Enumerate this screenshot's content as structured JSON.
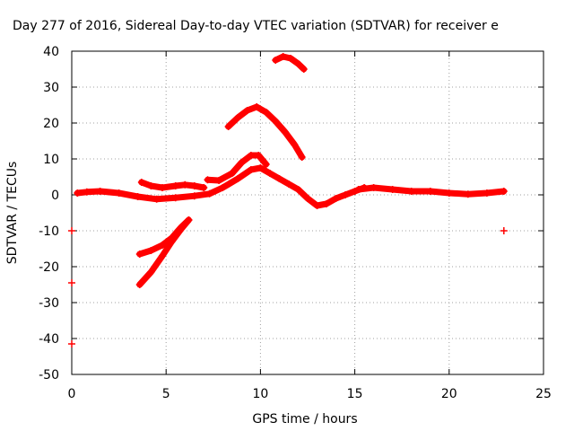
{
  "chart_data": {
    "type": "scatter",
    "title": "Day 277 of 2016, Sidereal Day-to-day VTEC variation (SDTVAR) for receiver e",
    "xlabel": "GPS time / hours",
    "ylabel": "SDTVAR / TECUs",
    "xlim": [
      0,
      25
    ],
    "ylim": [
      -50,
      40
    ],
    "xticks": [
      "0",
      "5",
      "10",
      "15",
      "20",
      "25"
    ],
    "yticks": [
      "40",
      "30",
      "20",
      "10",
      "0",
      "-10",
      "-20",
      "-30",
      "-40",
      "-50"
    ],
    "grid": true,
    "series": [
      {
        "color": "#ff0000",
        "marker": "plus",
        "tracks": [
          [
            [
              0.3,
              0.5
            ],
            [
              0.8,
              0.8
            ],
            [
              1.5,
              1.0
            ],
            [
              2.5,
              0.5
            ],
            [
              3.5,
              -0.5
            ],
            [
              4.5,
              -1.2
            ],
            [
              5.5,
              -0.8
            ],
            [
              6.5,
              -0.3
            ],
            [
              7.3,
              0.3
            ],
            [
              8.0,
              2.0
            ],
            [
              8.8,
              4.5
            ],
            [
              9.5,
              7.0
            ],
            [
              10.0,
              7.5
            ],
            [
              10.5,
              6.0
            ],
            [
              11.0,
              4.5
            ],
            [
              11.5,
              3.0
            ],
            [
              12.0,
              1.5
            ],
            [
              12.5,
              -1.0
            ],
            [
              13.0,
              -3.0
            ],
            [
              13.5,
              -2.5
            ],
            [
              14.0,
              -1.0
            ],
            [
              14.5,
              0.0
            ],
            [
              15.0,
              1.0
            ],
            [
              15.5,
              2.0
            ]
          ],
          [
            [
              3.7,
              3.5
            ],
            [
              4.2,
              2.5
            ],
            [
              4.8,
              2.0
            ],
            [
              5.5,
              2.5
            ],
            [
              6.0,
              2.8
            ],
            [
              6.5,
              2.5
            ],
            [
              7.0,
              2.0
            ]
          ],
          [
            [
              7.2,
              4.2
            ],
            [
              7.8,
              4.0
            ],
            [
              8.5,
              6.0
            ],
            [
              9.0,
              9.0
            ],
            [
              9.5,
              11.0
            ],
            [
              9.9,
              11.0
            ],
            [
              10.3,
              8.5
            ]
          ],
          [
            [
              8.3,
              19.0
            ],
            [
              8.8,
              21.5
            ],
            [
              9.3,
              23.5
            ],
            [
              9.8,
              24.5
            ],
            [
              10.3,
              23.0
            ],
            [
              10.8,
              20.5
            ],
            [
              11.3,
              17.5
            ],
            [
              11.8,
              14.0
            ],
            [
              12.2,
              10.5
            ]
          ],
          [
            [
              10.8,
              37.5
            ],
            [
              11.2,
              38.5
            ],
            [
              11.6,
              38.0
            ],
            [
              12.0,
              36.5
            ],
            [
              12.3,
              35.0
            ]
          ],
          [
            [
              3.6,
              -16.5
            ],
            [
              4.2,
              -15.5
            ],
            [
              4.8,
              -14.0
            ],
            [
              5.3,
              -12.0
            ],
            [
              5.8,
              -9.0
            ],
            [
              6.2,
              -7.0
            ]
          ],
          [
            [
              3.6,
              -25.0
            ],
            [
              4.2,
              -21.5
            ],
            [
              4.8,
              -17.0
            ],
            [
              5.3,
              -13.0
            ],
            [
              5.8,
              -9.5
            ],
            [
              6.2,
              -7.0
            ]
          ],
          [
            [
              15.2,
              1.5
            ],
            [
              16.0,
              2.0
            ],
            [
              17.0,
              1.5
            ],
            [
              18.0,
              1.0
            ],
            [
              19.0,
              1.0
            ],
            [
              20.0,
              0.5
            ],
            [
              21.0,
              0.2
            ],
            [
              22.0,
              0.5
            ],
            [
              22.9,
              1.0
            ]
          ]
        ],
        "points": [
          [
            22.9,
            -10.0
          ],
          [
            0.0,
            -10.0
          ],
          [
            0.0,
            -24.5
          ],
          [
            0.0,
            -41.5
          ]
        ]
      }
    ]
  }
}
